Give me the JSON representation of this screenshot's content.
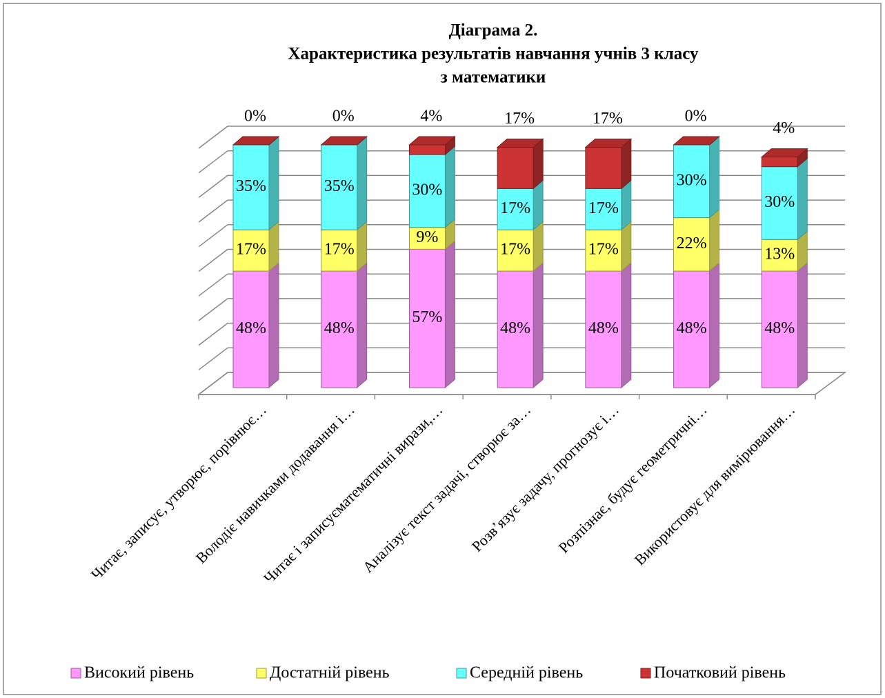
{
  "chart_data": {
    "type": "stacked-bar-3d",
    "title": [
      "Діаграма 2.",
      "Характеристика результатів навчання учнів 3 класу",
      "з математики"
    ],
    "categories": [
      "Читає, записує, утворює, порівнює…",
      "Володіє навичками додавання і…",
      "Читає і записуєматематичні вирази,…",
      "Аналізує текст задачі, створює за…",
      "Розв’язує задачу, прогнозує і…",
      "Розпізнає, будує геометричні…",
      "Використовує для вимірювання…"
    ],
    "series": [
      {
        "name": "Високий рівень",
        "color": "#ff99ff",
        "values": [
          48,
          48,
          57,
          48,
          48,
          48,
          48
        ],
        "value_labels": [
          "48%",
          "48%",
          "57%",
          "48%",
          "48%",
          "48%",
          "48%"
        ]
      },
      {
        "name": "Достатній рівень",
        "color": "#ffff66",
        "values": [
          17,
          17,
          9,
          17,
          17,
          22,
          13
        ],
        "value_labels": [
          "17%",
          "17%",
          "9%",
          "17%",
          "17%",
          "22%",
          "13%"
        ]
      },
      {
        "name": "Середній рівень",
        "color": "#66ffff",
        "values": [
          35,
          35,
          30,
          17,
          17,
          30,
          30
        ],
        "value_labels": [
          "35%",
          "35%",
          "30%",
          "17%",
          "17%",
          "30%",
          "30%"
        ]
      },
      {
        "name": "Початковий рівень",
        "color": "#cc3333",
        "values": [
          0,
          0,
          4,
          17,
          17,
          0,
          4
        ],
        "value_labels": [
          "0%",
          "0%",
          "4%",
          "17%",
          "17%",
          "0%",
          "4%"
        ]
      }
    ],
    "ylim": [
      0,
      100
    ],
    "yticks": [
      0,
      10,
      20,
      30,
      40,
      50,
      60,
      70,
      80,
      90,
      100
    ],
    "grid": true,
    "legend": "bottom"
  }
}
